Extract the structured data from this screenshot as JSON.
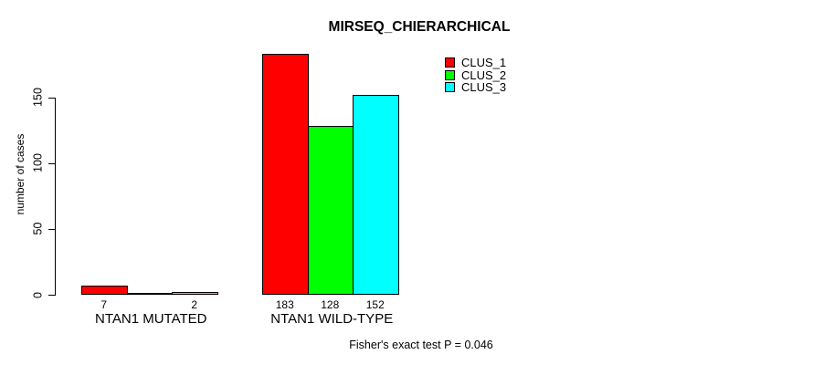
{
  "chart_data": {
    "type": "bar",
    "title": "MIRSEQ_CHIERARCHICAL",
    "xlabel": "",
    "ylabel": "number of cases",
    "categories": [
      "NTAN1 MUTATED",
      "NTAN1 WILD-TYPE"
    ],
    "series": [
      {
        "name": "CLUS_1",
        "color": "#ff0000",
        "values": [
          7,
          183
        ]
      },
      {
        "name": "CLUS_2",
        "color": "#00ff00",
        "values": [
          0,
          128
        ]
      },
      {
        "name": "CLUS_3",
        "color": "#00ffff",
        "values": [
          2,
          152
        ]
      }
    ],
    "bar_value_labels": [
      [
        "7",
        "",
        "2"
      ],
      [
        "183",
        "128",
        "152"
      ]
    ],
    "yticks": [
      0,
      50,
      100,
      150
    ],
    "ylim": [
      0,
      190
    ],
    "grid": false,
    "bar_border_color": "#000000",
    "background_color": "#ffffff",
    "legend": {
      "position": "top-right",
      "entries": [
        "CLUS_1",
        "CLUS_2",
        "CLUS_3"
      ]
    },
    "annotation": "Fisher's exact test P = 0.046"
  }
}
